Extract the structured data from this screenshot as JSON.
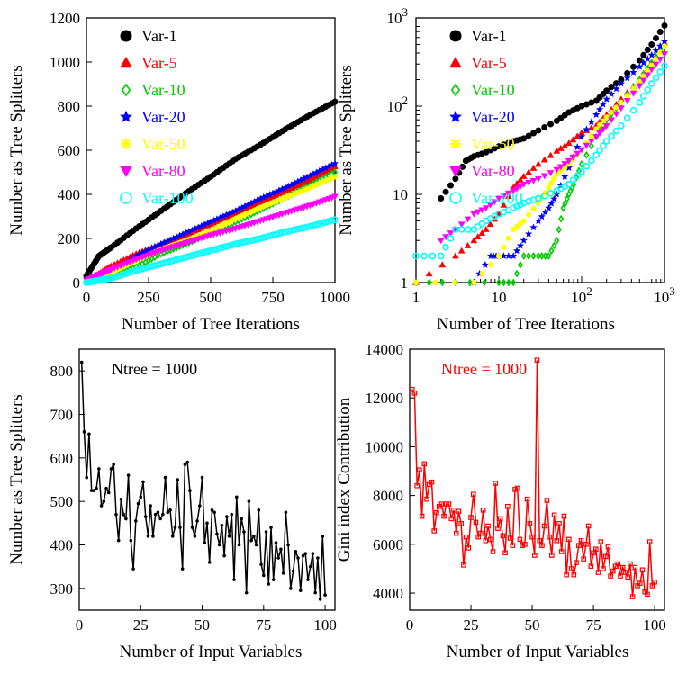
{
  "chart_data": [
    {
      "id": "top-left",
      "type": "scatter",
      "xlabel": "Number of Tree Iterations",
      "ylabel": "Number as Tree Splitters",
      "xlim": [
        0,
        1000
      ],
      "ylim": [
        0,
        1200
      ],
      "xticks": [
        0,
        250,
        500,
        750,
        1000
      ],
      "yticks": [
        0,
        200,
        400,
        600,
        800,
        1000,
        1200
      ],
      "xscale": "linear",
      "yscale": "linear",
      "legend_position": "top-left",
      "series": [
        {
          "name": "Var-1",
          "marker": "circle",
          "color": "#000000",
          "x": [
            0,
            50,
            100,
            200,
            300,
            400,
            500,
            600,
            700,
            800,
            900,
            1000
          ],
          "y": [
            30,
            120,
            160,
            245,
            325,
            405,
            480,
            560,
            625,
            695,
            760,
            820
          ]
        },
        {
          "name": "Var-5",
          "marker": "triangle-up",
          "color": "#ff0000",
          "x": [
            0,
            50,
            100,
            200,
            300,
            400,
            500,
            600,
            700,
            800,
            900,
            1000
          ],
          "y": [
            10,
            40,
            75,
            130,
            175,
            215,
            265,
            315,
            365,
            415,
            465,
            525
          ]
        },
        {
          "name": "Var-10",
          "marker": "diamond-open",
          "color": "#00cc00",
          "x": [
            0,
            50,
            100,
            200,
            300,
            400,
            500,
            600,
            700,
            800,
            900,
            1000
          ],
          "y": [
            5,
            15,
            30,
            70,
            130,
            175,
            225,
            275,
            330,
            385,
            440,
            500
          ]
        },
        {
          "name": "Var-20",
          "marker": "star",
          "color": "#0000ff",
          "x": [
            0,
            50,
            100,
            200,
            300,
            400,
            500,
            600,
            700,
            800,
            900,
            1000
          ],
          "y": [
            0,
            15,
            40,
            120,
            175,
            225,
            275,
            325,
            380,
            430,
            485,
            540
          ]
        },
        {
          "name": "Var-50",
          "marker": "asterisk",
          "color": "#ffff00",
          "x": [
            0,
            50,
            100,
            200,
            300,
            400,
            500,
            600,
            700,
            800,
            900,
            1000
          ],
          "y": [
            5,
            25,
            45,
            100,
            150,
            190,
            235,
            290,
            340,
            385,
            430,
            480
          ]
        },
        {
          "name": "Var-80",
          "marker": "triangle-down",
          "color": "#ff00ff",
          "x": [
            0,
            50,
            100,
            200,
            300,
            400,
            500,
            600,
            700,
            800,
            900,
            1000
          ],
          "y": [
            10,
            35,
            60,
            105,
            145,
            180,
            215,
            245,
            280,
            315,
            350,
            390
          ]
        },
        {
          "name": "Var-100",
          "marker": "circle-open",
          "color": "#00ffff",
          "x": [
            0,
            50,
            100,
            200,
            300,
            400,
            500,
            600,
            700,
            800,
            900,
            1000
          ],
          "y": [
            0,
            10,
            20,
            55,
            85,
            115,
            145,
            175,
            200,
            230,
            255,
            285
          ]
        }
      ]
    },
    {
      "id": "top-right",
      "type": "scatter",
      "xlabel": "Number of Tree Iterations",
      "ylabel": "Number as Tree Splitters",
      "xlim": [
        1,
        1000
      ],
      "ylim": [
        1,
        1000
      ],
      "xscale": "log",
      "yscale": "log",
      "xtick_labels": [
        "1",
        "10",
        "10^2",
        "10^3"
      ],
      "ytick_labels": [
        "1",
        "10",
        "10^2",
        "10^3"
      ],
      "legend_position": "top-left",
      "series": [
        {
          "name": "Var-1",
          "marker": "circle",
          "color": "#000000",
          "x": [
            2,
            3,
            4,
            5,
            7,
            10,
            15,
            20,
            30,
            50,
            70,
            100,
            150,
            200,
            300,
            500,
            700,
            1000
          ],
          "y": [
            9,
            15,
            24,
            27,
            30,
            35,
            40,
            43,
            53,
            68,
            85,
            100,
            115,
            150,
            200,
            330,
            500,
            820
          ]
        },
        {
          "name": "Var-5",
          "marker": "triangle-up",
          "color": "#ff0000",
          "x": [
            1,
            3,
            5,
            7,
            10,
            15,
            20,
            30,
            50,
            70,
            100,
            150,
            200,
            300,
            500,
            700,
            1000
          ],
          "y": [
            1,
            2,
            3,
            4,
            6,
            12,
            16,
            22,
            31,
            38,
            50,
            60,
            80,
            120,
            200,
            310,
            525
          ]
        },
        {
          "name": "Var-10",
          "marker": "diamond-open",
          "color": "#00cc00",
          "x": [
            1,
            3,
            10,
            15,
            20,
            30,
            40,
            50,
            60,
            70,
            80,
            100,
            150,
            200,
            300,
            500,
            700,
            1000
          ],
          "y": [
            1,
            1,
            1,
            1,
            2,
            2,
            2,
            3,
            7,
            10,
            13,
            22,
            45,
            70,
            110,
            200,
            310,
            500
          ]
        },
        {
          "name": "Var-20",
          "marker": "star",
          "color": "#0000ff",
          "x": [
            5,
            8,
            10,
            15,
            20,
            30,
            40,
            50,
            70,
            100,
            150,
            200,
            300,
            500,
            700,
            1000
          ],
          "y": [
            1,
            2,
            2,
            2,
            3,
            5,
            7,
            10,
            20,
            45,
            80,
            120,
            180,
            280,
            380,
            540
          ]
        },
        {
          "name": "Var-50",
          "marker": "asterisk",
          "color": "#ffff00",
          "x": [
            1,
            5,
            10,
            15,
            20,
            30,
            40,
            50,
            70,
            100,
            150,
            200,
            300,
            500,
            700,
            1000
          ],
          "y": [
            1,
            1,
            2,
            4,
            5,
            8,
            12,
            17,
            22,
            32,
            55,
            75,
            110,
            190,
            290,
            480
          ]
        },
        {
          "name": "Var-80",
          "marker": "triangle-down",
          "color": "#ff00ff",
          "x": [
            2,
            3,
            5,
            7,
            10,
            15,
            20,
            30,
            50,
            70,
            100,
            150,
            200,
            300,
            500,
            700,
            1000
          ],
          "y": [
            3,
            4,
            6,
            7,
            9,
            11,
            13,
            15,
            19,
            24,
            32,
            45,
            60,
            95,
            170,
            260,
            390
          ]
        },
        {
          "name": "Var-100",
          "marker": "circle-open",
          "color": "#00ffff",
          "x": [
            1,
            2,
            3,
            5,
            7,
            10,
            15,
            20,
            30,
            50,
            70,
            100,
            150,
            200,
            300,
            500,
            700,
            1000
          ],
          "y": [
            2,
            2,
            4,
            4,
            5,
            6,
            7,
            8,
            9,
            11,
            13,
            18,
            28,
            40,
            60,
            110,
            180,
            285
          ]
        }
      ]
    },
    {
      "id": "bottom-left",
      "type": "line",
      "annotation": "Ntree = 1000",
      "xlabel": "Number of Input Variables",
      "ylabel": "Number as Tree Splitters",
      "xlim": [
        0,
        104
      ],
      "ylim": [
        250,
        850
      ],
      "xticks": [
        0,
        25,
        50,
        75,
        100
      ],
      "yticks": [
        300,
        400,
        500,
        600,
        700,
        800
      ],
      "color": "#000000",
      "x": [
        1,
        2,
        3,
        4,
        5,
        6,
        7,
        8,
        9,
        10,
        11,
        12,
        13,
        14,
        15,
        16,
        17,
        18,
        19,
        20,
        21,
        22,
        23,
        24,
        25,
        26,
        27,
        28,
        29,
        30,
        31,
        32,
        33,
        34,
        35,
        36,
        37,
        38,
        39,
        40,
        41,
        42,
        43,
        44,
        45,
        46,
        47,
        48,
        49,
        50,
        51,
        52,
        53,
        54,
        55,
        56,
        57,
        58,
        59,
        60,
        61,
        62,
        63,
        64,
        65,
        66,
        67,
        68,
        69,
        70,
        71,
        72,
        73,
        74,
        75,
        76,
        77,
        78,
        79,
        80,
        81,
        82,
        83,
        84,
        85,
        86,
        87,
        88,
        89,
        90,
        91,
        92,
        93,
        94,
        95,
        96,
        97,
        98,
        99,
        100
      ],
      "y": [
        820,
        660,
        555,
        655,
        525,
        525,
        530,
        575,
        490,
        500,
        530,
        520,
        575,
        585,
        470,
        410,
        505,
        470,
        460,
        560,
        410,
        345,
        455,
        495,
        510,
        545,
        465,
        420,
        490,
        420,
        470,
        475,
        460,
        470,
        555,
        475,
        480,
        420,
        440,
        550,
        440,
        345,
        585,
        590,
        525,
        440,
        420,
        455,
        490,
        555,
        405,
        450,
        360,
        480,
        475,
        425,
        400,
        445,
        375,
        465,
        420,
        470,
        320,
        510,
        400,
        460,
        430,
        290,
        500,
        410,
        420,
        400,
        480,
        355,
        330,
        430,
        310,
        440,
        320,
        405,
        370,
        390,
        335,
        475,
        400,
        300,
        340,
        385,
        370,
        295,
        375,
        380,
        320,
        350,
        380,
        290,
        370,
        275,
        420,
        285
      ]
    },
    {
      "id": "bottom-right",
      "type": "line",
      "annotation": "Ntree = 1000",
      "xlabel": "Number of Input Variables",
      "ylabel": "Gini index Contribution",
      "xlim": [
        0,
        104
      ],
      "ylim": [
        3300,
        14000
      ],
      "xticks": [
        0,
        25,
        50,
        75,
        100
      ],
      "yticks": [
        4000,
        6000,
        8000,
        10000,
        12000,
        14000
      ],
      "color": "#ff0000",
      "x": [
        1,
        2,
        3,
        4,
        5,
        6,
        7,
        8,
        9,
        10,
        11,
        12,
        13,
        14,
        15,
        16,
        17,
        18,
        19,
        20,
        21,
        22,
        23,
        24,
        25,
        26,
        27,
        28,
        29,
        30,
        31,
        32,
        33,
        34,
        35,
        36,
        37,
        38,
        39,
        40,
        41,
        42,
        43,
        44,
        45,
        46,
        47,
        48,
        49,
        50,
        51,
        52,
        53,
        54,
        55,
        56,
        57,
        58,
        59,
        60,
        61,
        62,
        63,
        64,
        65,
        66,
        67,
        68,
        69,
        70,
        71,
        72,
        73,
        74,
        75,
        76,
        77,
        78,
        79,
        80,
        81,
        82,
        83,
        84,
        85,
        86,
        87,
        88,
        89,
        90,
        91,
        92,
        93,
        94,
        95,
        96,
        97,
        98,
        99,
        100
      ],
      "y": [
        12350,
        12200,
        8400,
        9050,
        7150,
        9300,
        7850,
        8450,
        8550,
        6550,
        7300,
        7550,
        7650,
        7150,
        7650,
        7650,
        7050,
        7400,
        6450,
        7350,
        6850,
        5150,
        6300,
        5850,
        7100,
        8050,
        6900,
        6300,
        6450,
        7400,
        6150,
        6750,
        6200,
        5700,
        8500,
        6650,
        7050,
        6350,
        5650,
        7550,
        6250,
        5950,
        8250,
        8300,
        6200,
        5950,
        6000,
        7850,
        6850,
        6300,
        5550,
        13550,
        6150,
        5950,
        6750,
        7800,
        6300,
        5550,
        7200,
        6150,
        6850,
        5700,
        7150,
        4750,
        6200,
        5000,
        4750,
        5250,
        5950,
        6150,
        5400,
        6000,
        6750,
        5100,
        5650,
        5800,
        4850,
        6100,
        5000,
        5500,
        5900,
        4700,
        4900,
        5100,
        5200,
        4700,
        5050,
        4850,
        4650,
        5200,
        3850,
        5050,
        4300,
        4400,
        4950,
        4050,
        3950,
        6100,
        4300,
        4450
      ]
    }
  ]
}
